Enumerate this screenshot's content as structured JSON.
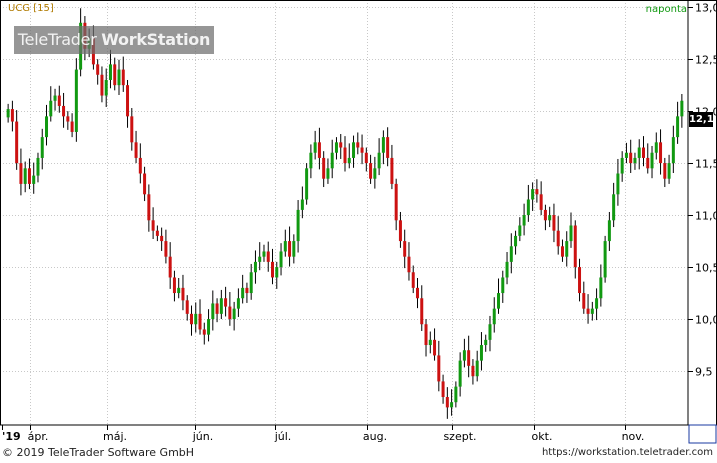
{
  "header": {
    "ticker": "UCG [15]",
    "period": "naponta"
  },
  "watermark": {
    "brand_light": "TeleTrader",
    "brand_bold": "WorkStation"
  },
  "footer": {
    "copyright": "© 2019 TeleTrader Software GmbH",
    "url": "https://workstation.teletrader.com"
  },
  "colors": {
    "up": "#119911",
    "down": "#cc1111",
    "grid": "#c8c8c8",
    "axis": "#000000"
  },
  "chart_data": {
    "type": "candlestick",
    "ylim": [
      9.0,
      13.05
    ],
    "y_ticks": [
      9.5,
      10.0,
      10.5,
      11.0,
      11.5,
      12.0,
      12.5,
      13.0
    ],
    "y_tick_labels": [
      "9,5",
      "10,0",
      "10,5",
      "11,0",
      "11,5",
      "12,0",
      "12,5",
      "13,0"
    ],
    "x_labels": [
      "'19",
      "ápr.",
      "máj.",
      "jún.",
      "júl.",
      "aug.",
      "szept.",
      "okt.",
      "nov."
    ],
    "last_value": "12,1",
    "closes": [
      12.02,
      11.9,
      11.5,
      11.3,
      11.45,
      11.3,
      11.38,
      11.55,
      11.75,
      11.95,
      12.1,
      12.15,
      12.05,
      11.95,
      11.9,
      11.8,
      12.4,
      12.85,
      12.6,
      12.7,
      12.45,
      12.35,
      12.15,
      12.3,
      12.45,
      12.25,
      12.4,
      12.25,
      11.95,
      11.7,
      11.55,
      11.4,
      11.2,
      10.95,
      10.85,
      10.8,
      10.75,
      10.6,
      10.4,
      10.25,
      10.3,
      10.18,
      10.05,
      9.95,
      10.05,
      9.9,
      9.85,
      10.0,
      10.15,
      10.05,
      10.2,
      10.12,
      10.0,
      10.1,
      10.2,
      10.3,
      10.25,
      10.45,
      10.55,
      10.6,
      10.65,
      10.55,
      10.4,
      10.5,
      10.65,
      10.75,
      10.6,
      10.75,
      11.05,
      11.15,
      11.45,
      11.6,
      11.7,
      11.55,
      11.35,
      11.45,
      11.6,
      11.7,
      11.65,
      11.5,
      11.55,
      11.7,
      11.65,
      11.6,
      11.5,
      11.35,
      11.45,
      11.6,
      11.75,
      11.55,
      11.3,
      10.95,
      10.75,
      10.6,
      10.45,
      10.3,
      10.2,
      9.95,
      9.75,
      9.8,
      9.65,
      9.4,
      9.25,
      9.15,
      9.2,
      9.35,
      9.6,
      9.7,
      9.55,
      9.45,
      9.6,
      9.75,
      9.8,
      9.95,
      10.1,
      10.25,
      10.4,
      10.55,
      10.7,
      10.8,
      10.9,
      11.0,
      11.15,
      11.25,
      11.2,
      11.05,
      10.95,
      11.0,
      10.85,
      10.7,
      10.6,
      10.75,
      10.9,
      10.5,
      10.25,
      10.1,
      10.05,
      10.1,
      10.2,
      10.4,
      10.75,
      10.95,
      11.2,
      11.4,
      11.55,
      11.6,
      11.5,
      11.55,
      11.65,
      11.55,
      11.45,
      11.6,
      11.7,
      11.5,
      11.35,
      11.5,
      11.75,
      11.95,
      12.1
    ]
  }
}
